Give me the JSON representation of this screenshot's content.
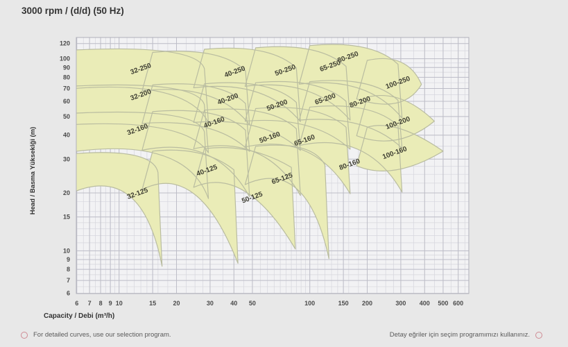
{
  "title": "3000 rpm / (d/d) (50 Hz)",
  "axes": {
    "x": {
      "label": "Capacity / Debi (m³/h)",
      "scale": "log",
      "ticks": [
        6,
        7,
        8,
        9,
        10,
        15,
        20,
        30,
        40,
        50,
        100,
        150,
        200,
        300,
        400,
        500,
        600
      ],
      "min": 6,
      "max": 682
    },
    "y": {
      "label": "Head / Basma Yükseklği (m)",
      "scale": "log",
      "ticks": [
        120,
        100,
        90,
        80,
        70,
        60,
        50,
        40,
        30,
        20,
        15,
        10,
        9,
        8,
        7,
        6
      ],
      "min": 6,
      "max": 129
    }
  },
  "chart_data": {
    "type": "area",
    "title": "3000 rpm / (d/d) (50 Hz)",
    "xlabel": "Capacity / Debi (m³/h)",
    "ylabel": "Head / Basma Yükseklği (m)",
    "x_range": [
      6,
      682
    ],
    "y_range": [
      6,
      129
    ],
    "grid": "log-log",
    "legend": "none",
    "series_note": "Each region is a pump model coverage envelope; pts are [capacity m³/h, head m] outline corners (TL, knee, TR, BR, bottom-mid, BL; 5-point regions are TL, knee, tip, bottom-mid, BL).",
    "series": [
      {
        "name": "32-250",
        "pts": [
          [
            5.77,
            111
          ],
          [
            18,
            108.8
          ],
          [
            28,
            88.8
          ],
          [
            29.4,
            46.6
          ],
          [
            17.1,
            66.6
          ],
          [
            5.77,
            69.9
          ]
        ],
        "label_at": [
          13.1,
          86.5
        ]
      },
      {
        "name": "40-250",
        "pts": [
          [
            15,
            108
          ],
          [
            30,
            105.8
          ],
          [
            46,
            86.4
          ],
          [
            48.3,
            45.4
          ],
          [
            28.5,
            64.8
          ],
          [
            13.2,
            68
          ]
        ],
        "label_at": [
          40.8,
          83.5
        ]
      },
      {
        "name": "50-250",
        "pts": [
          [
            28,
            112
          ],
          [
            55,
            109.8
          ],
          [
            85,
            89.6
          ],
          [
            89.3,
            47
          ],
          [
            52.3,
            67.2
          ],
          [
            24.6,
            70.6
          ]
        ],
        "label_at": [
          75,
          85
        ]
      },
      {
        "name": "65-250",
        "pts": [
          [
            52,
            114
          ],
          [
            100,
            111.7
          ],
          [
            155,
            91.2
          ],
          [
            162.8,
            47.9
          ],
          [
            95,
            68.4
          ],
          [
            45.8,
            71.8
          ]
        ],
        "label_at": [
          129,
          89.5
        ]
      },
      {
        "name": "80-250",
        "pts": [
          [
            100,
            117
          ],
          [
            190,
            114.7
          ],
          [
            290,
            93.6
          ],
          [
            304.5,
            49.1
          ],
          [
            180.5,
            70.2
          ],
          [
            88,
            73.7
          ]
        ],
        "label_at": [
          160,
          99.5
        ]
      },
      {
        "name": "100-250",
        "pts": [
          [
            200,
            98
          ],
          [
            300,
            96
          ],
          [
            385,
            73.5
          ],
          [
            285,
            58.8
          ],
          [
            176,
            61.7
          ]
        ],
        "label_at": [
          292,
          73.3
        ]
      },
      {
        "name": "32-200",
        "pts": [
          [
            5.77,
            72
          ],
          [
            18,
            70.6
          ],
          [
            28,
            57.6
          ],
          [
            29.4,
            32.4
          ],
          [
            17.1,
            43.2
          ],
          [
            5.77,
            45.4
          ]
        ],
        "label_at": [
          13.1,
          63.3
        ]
      },
      {
        "name": "40-200",
        "pts": [
          [
            15,
            73
          ],
          [
            30,
            71.5
          ],
          [
            46,
            58.4
          ],
          [
            48.3,
            32.9
          ],
          [
            28.5,
            43.8
          ],
          [
            13.2,
            46
          ]
        ],
        "label_at": [
          37.5,
          60.2
        ]
      },
      {
        "name": "50-200",
        "pts": [
          [
            28,
            74
          ],
          [
            55,
            72.5
          ],
          [
            85,
            59.2
          ],
          [
            89.3,
            33.3
          ],
          [
            52.3,
            44.4
          ],
          [
            24.6,
            46.6
          ]
        ],
        "label_at": [
          68,
          55.9
        ]
      },
      {
        "name": "65-200",
        "pts": [
          [
            52,
            75
          ],
          [
            100,
            73.5
          ],
          [
            155,
            60
          ],
          [
            162.8,
            33.8
          ],
          [
            95,
            45
          ],
          [
            45.8,
            47.3
          ]
        ],
        "label_at": [
          121.5,
          60.2
        ]
      },
      {
        "name": "80-200",
        "pts": [
          [
            100,
            76
          ],
          [
            190,
            74.5
          ],
          [
            290,
            60.8
          ],
          [
            304.5,
            34.2
          ],
          [
            180.5,
            45.6
          ],
          [
            88,
            47.9
          ]
        ],
        "label_at": [
          185,
          58.1
        ]
      },
      {
        "name": "100-200",
        "pts": [
          [
            200,
            63
          ],
          [
            300,
            61.7
          ],
          [
            450,
            47.3
          ],
          [
            285,
            37.8
          ],
          [
            176,
            39.7
          ]
        ],
        "label_at": [
          292,
          45.2
        ]
      },
      {
        "name": "32-160",
        "pts": [
          [
            5.77,
            52
          ],
          [
            18,
            51
          ],
          [
            28,
            41.6
          ],
          [
            29.4,
            18.7
          ],
          [
            17.1,
            31.2
          ],
          [
            5.77,
            32.8
          ]
        ],
        "label_at": [
          12.6,
          41.8
        ]
      },
      {
        "name": "40-160",
        "pts": [
          [
            15,
            53
          ],
          [
            30,
            51.9
          ],
          [
            46,
            42.4
          ],
          [
            48.3,
            19.1
          ],
          [
            28.5,
            31.8
          ],
          [
            13.2,
            33.4
          ]
        ],
        "label_at": [
          31.8,
          45.5
        ]
      },
      {
        "name": "50-160",
        "pts": [
          [
            28,
            54
          ],
          [
            55,
            52.9
          ],
          [
            85,
            43.2
          ],
          [
            89.3,
            19.4
          ],
          [
            52.3,
            32.4
          ],
          [
            24.6,
            34
          ]
        ],
        "label_at": [
          62.2,
          38
        ]
      },
      {
        "name": "65-160",
        "pts": [
          [
            52,
            55
          ],
          [
            100,
            53.9
          ],
          [
            155,
            44
          ],
          [
            162.8,
            19.8
          ],
          [
            95,
            33
          ],
          [
            45.8,
            34.7
          ]
        ],
        "label_at": [
          94.6,
          36.7
        ]
      },
      {
        "name": "80-160",
        "pts": [
          [
            100,
            56
          ],
          [
            190,
            54.9
          ],
          [
            290,
            44.8
          ],
          [
            304.5,
            20.2
          ],
          [
            180.5,
            33.6
          ],
          [
            88,
            35.3
          ]
        ],
        "label_at": [
          163,
          27.5
        ]
      },
      {
        "name": "100-160",
        "pts": [
          [
            200,
            44
          ],
          [
            300,
            43.1
          ],
          [
            500,
            33
          ],
          [
            285,
            26.4
          ],
          [
            176,
            27.7
          ]
        ],
        "label_at": [
          281,
          31.6
        ]
      },
      {
        "name": "32-125",
        "pts": [
          [
            5.77,
            32
          ],
          [
            12,
            31.4
          ],
          [
            16,
            25.6
          ],
          [
            16.8,
            8.3
          ],
          [
            11.4,
            19.2
          ],
          [
            5.77,
            20.2
          ]
        ],
        "label_at": [
          12.6,
          19.4
        ]
      },
      {
        "name": "40-125",
        "pts": [
          [
            15,
            33
          ],
          [
            26,
            32.3
          ],
          [
            40,
            26.4
          ],
          [
            42,
            8.6
          ],
          [
            24.7,
            19.8
          ],
          [
            13.2,
            20.8
          ]
        ],
        "label_at": [
          29.1,
          25.6
        ]
      },
      {
        "name": "50-125",
        "pts": [
          [
            28,
            34
          ],
          [
            48,
            33.3
          ],
          [
            80,
            27.2
          ],
          [
            84,
            10.2
          ],
          [
            45.6,
            20.4
          ],
          [
            24.6,
            21.4
          ]
        ],
        "label_at": [
          50.3,
          18.5
        ]
      },
      {
        "name": "65-125",
        "pts": [
          [
            52,
            35
          ],
          [
            90,
            34.3
          ],
          [
            120,
            28
          ],
          [
            126,
            9.1
          ],
          [
            85.5,
            21
          ],
          [
            45.8,
            22.1
          ]
        ],
        "label_at": [
          72.2,
          23.2
        ]
      }
    ]
  },
  "footer": {
    "left_note": "For detailed curves, use our selection program.",
    "right_note": "Detay eğriler için seçim programımızı kullanınız."
  },
  "colors": {
    "page_bg": "#e8e8e8",
    "plot_bg": "#f2f2f4",
    "grid_minor": "#d6d6dd",
    "grid_major": "#bdbdc7",
    "frame": "#b0b0ba",
    "tile_fill": "#eaecb7",
    "tile_stroke": "#b9bca0",
    "tile_label": "#3f3f33",
    "tick_text": "#4a4a4a",
    "title_text": "#333333",
    "footer_text": "#5a5a5a",
    "footer_circle": "#cf8a93"
  }
}
